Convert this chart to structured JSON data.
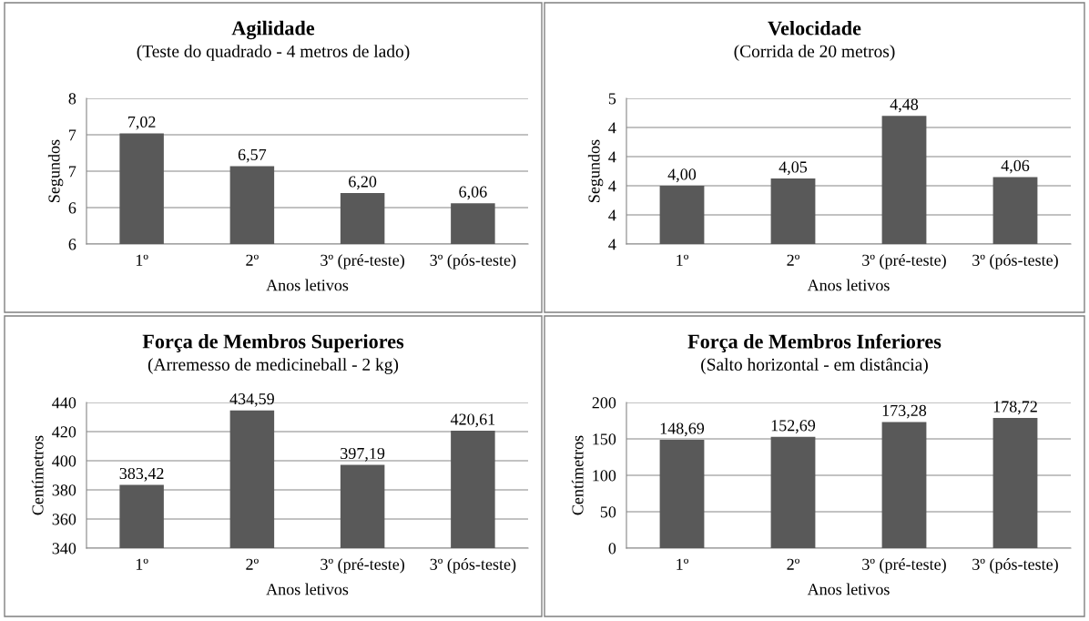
{
  "chart_data": [
    {
      "type": "bar",
      "title": "Agilidade",
      "subtitle": "(Teste do quadrado - 4 metros de lado)",
      "xlabel": "Anos letivos",
      "ylabel": "Segundos",
      "categories": [
        "1º",
        "2º",
        "3º (pré-teste)",
        "3º (pós-teste)"
      ],
      "values": [
        7.02,
        6.57,
        6.2,
        6.06
      ],
      "value_labels": [
        "7,02",
        "6,57",
        "6,20",
        "6,06"
      ],
      "color": "#595959",
      "ylim": [
        5.5,
        7.5
      ],
      "yticks": [
        {
          "value": 5.5,
          "label": "6"
        },
        {
          "value": 6.0,
          "label": "6"
        },
        {
          "value": 6.5,
          "label": "7"
        },
        {
          "value": 7.0,
          "label": "7"
        },
        {
          "value": 7.5,
          "label": "8"
        }
      ],
      "grid": "y"
    },
    {
      "type": "bar",
      "title": "Velocidade",
      "subtitle": "(Corrida de 20 metros)",
      "xlabel": "Anos letivos",
      "ylabel": "Segundos",
      "categories": [
        "1º",
        "2º",
        "3º (pré-teste)",
        "3º (pós-teste)"
      ],
      "values": [
        4.0,
        4.05,
        4.48,
        4.06
      ],
      "value_labels": [
        "4,00",
        "4,05",
        "4,48",
        "4,06"
      ],
      "color": "#595959",
      "ylim": [
        3.6,
        4.6
      ],
      "yticks": [
        {
          "value": 3.6,
          "label": "4"
        },
        {
          "value": 3.8,
          "label": "4"
        },
        {
          "value": 4.0,
          "label": "4"
        },
        {
          "value": 4.2,
          "label": "4"
        },
        {
          "value": 4.4,
          "label": "4"
        },
        {
          "value": 4.6,
          "label": "5"
        }
      ],
      "grid": "y"
    },
    {
      "type": "bar",
      "title": "Força de Membros Superiores",
      "subtitle": "(Arremesso de medicineball - 2 kg)",
      "xlabel": "Anos letivos",
      "ylabel": "Centímetros",
      "categories": [
        "1º",
        "2º",
        "3º (pré-teste)",
        "3º (pós-teste)"
      ],
      "values": [
        383.42,
        434.59,
        397.19,
        420.61
      ],
      "value_labels": [
        "383,42",
        "434,59",
        "397,19",
        "420,61"
      ],
      "color": "#595959",
      "ylim": [
        340,
        440
      ],
      "yticks": [
        340,
        360,
        380,
        400,
        420,
        440
      ],
      "grid": "y"
    },
    {
      "type": "bar",
      "title": "Força de Membros Inferiores",
      "subtitle": "(Salto horizontal - em distância)",
      "xlabel": "Anos letivos",
      "ylabel": "Centímetros",
      "categories": [
        "1º",
        "2º",
        "3º (pré-teste)",
        "3º (pós-teste)"
      ],
      "values": [
        148.69,
        152.69,
        173.28,
        178.72
      ],
      "value_labels": [
        "148,69",
        "152,69",
        "173,28",
        "178,72"
      ],
      "color": "#595959",
      "ylim": [
        0,
        200
      ],
      "yticks": [
        0,
        50,
        100,
        150,
        200
      ],
      "grid": "y"
    }
  ]
}
